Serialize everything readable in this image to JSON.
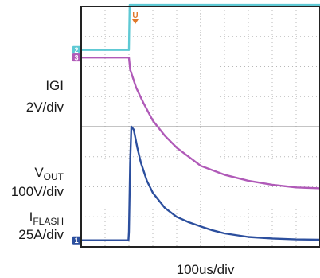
{
  "chart_data": {
    "type": "line",
    "time_scale": "100us/div",
    "grid": true,
    "trigger_marker": "U",
    "x_divisions": 10,
    "y_divisions": 8,
    "channels": [
      {
        "marker": "2",
        "label_main": "IGI",
        "label_sub": "",
        "scale": "2V/div",
        "color": "#5ec9d4",
        "x_div": [
          0,
          2.0,
          2.01,
          2.03,
          10
        ],
        "y_div": [
          6.55,
          6.55,
          7.1,
          8.05,
          8.05
        ]
      },
      {
        "marker": "3",
        "label_main": "V",
        "label_sub": "OUT",
        "scale": "100V/div",
        "color": "#b05ab8",
        "x_div": [
          0,
          2.0,
          2.05,
          2.3,
          2.6,
          3.0,
          3.5,
          4.0,
          5.0,
          6.0,
          7.0,
          8.0,
          9.0,
          10
        ],
        "y_div": [
          6.3,
          6.3,
          5.9,
          5.3,
          4.8,
          4.2,
          3.7,
          3.3,
          2.7,
          2.4,
          2.2,
          2.07,
          1.98,
          1.95
        ]
      },
      {
        "marker": "1",
        "label_main": "I",
        "label_sub": "FLASH",
        "scale": "25A/div",
        "color": "#2c4f9e",
        "x_div": [
          0,
          1.98,
          2.0,
          2.05,
          2.1,
          2.2,
          2.35,
          2.5,
          2.75,
          3.0,
          3.5,
          4.0,
          4.5,
          5.0,
          5.5,
          6.0,
          7.0,
          8.0,
          9.0,
          10
        ],
        "y_div": [
          0.22,
          0.22,
          0.5,
          2.8,
          4.0,
          3.9,
          3.3,
          2.8,
          2.2,
          1.8,
          1.3,
          1.0,
          0.82,
          0.68,
          0.55,
          0.45,
          0.33,
          0.28,
          0.25,
          0.24
        ]
      }
    ]
  }
}
